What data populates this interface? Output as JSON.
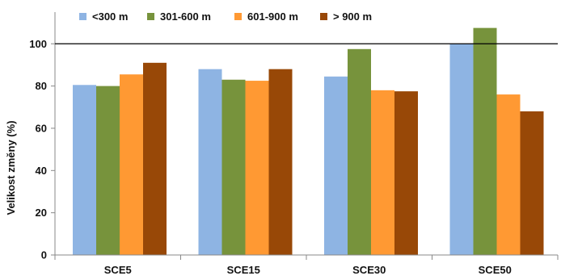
{
  "chart_data": {
    "type": "bar",
    "title": "",
    "xlabel": "",
    "ylabel": "Velikost změny (%)",
    "ylim": [
      0,
      115
    ],
    "yticks": [
      0,
      20,
      40,
      60,
      80,
      100
    ],
    "reference_line": 100,
    "grid": false,
    "legend_position": "top",
    "categories": [
      "SCE5",
      "SCE15",
      "SCE30",
      "SCE50"
    ],
    "series": [
      {
        "name": "<300 m",
        "color": "#8EB4E3",
        "values": [
          80.5,
          88,
          84.5,
          100
        ]
      },
      {
        "name": "301-600 m",
        "color": "#77933C",
        "values": [
          80,
          83,
          97.5,
          107.5
        ]
      },
      {
        "name": "601-900 m",
        "color": "#FF9933",
        "values": [
          85.5,
          82.5,
          78,
          76
        ]
      },
      {
        "name": "> 900 m",
        "color": "#984807",
        "values": [
          91,
          88,
          77.5,
          68
        ]
      }
    ]
  }
}
